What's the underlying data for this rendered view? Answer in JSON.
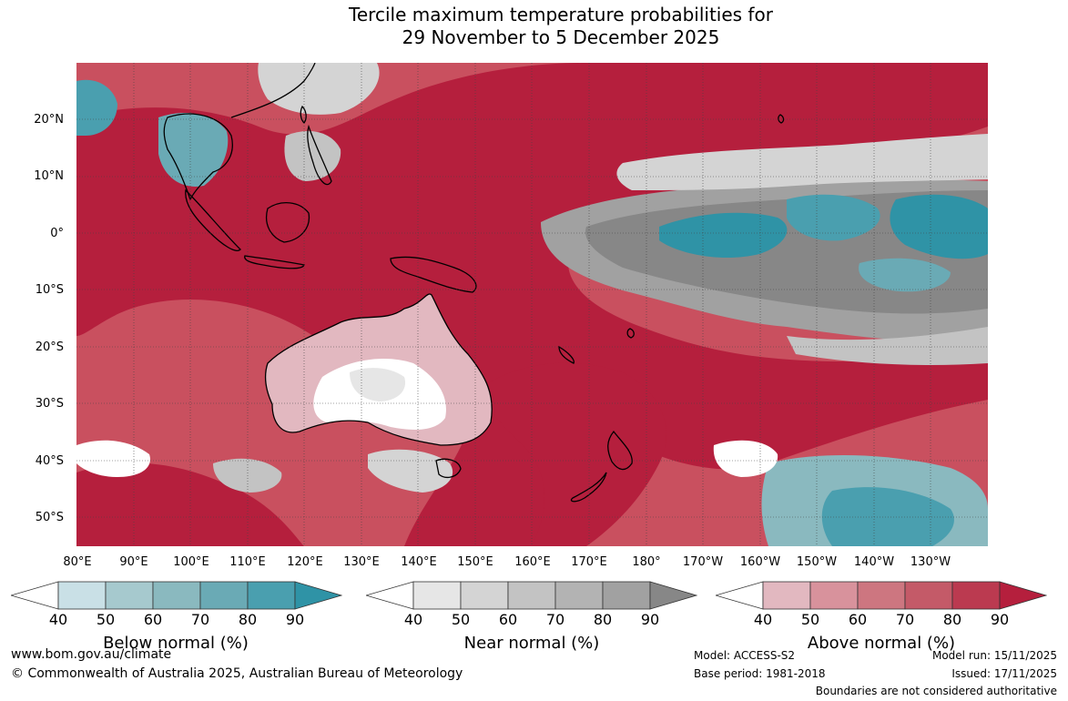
{
  "title_line1": "Tercile maximum temperature probabilities for",
  "title_line2": "29 November to 5 December 2025",
  "lat_ticks": [
    "20°N",
    "10°N",
    "0°",
    "10°S",
    "20°S",
    "30°S",
    "40°S",
    "50°S"
  ],
  "lon_ticks": [
    "80°E",
    "90°E",
    "100°E",
    "110°E",
    "120°E",
    "130°E",
    "140°E",
    "150°E",
    "160°E",
    "170°E",
    "180°",
    "170°W",
    "160°W",
    "150°W",
    "140°W",
    "130°W"
  ],
  "legends": [
    {
      "title": "Below normal (%)",
      "labels": [
        "40",
        "50",
        "60",
        "70",
        "80",
        "90"
      ],
      "colors": [
        "#ffffff",
        "#c9e0e6",
        "#a6c9ce",
        "#8ab9bf",
        "#6aaab5",
        "#4a9faf",
        "#2f93a6"
      ]
    },
    {
      "title": "Near normal (%)",
      "labels": [
        "40",
        "50",
        "60",
        "70",
        "80",
        "90"
      ],
      "colors": [
        "#ffffff",
        "#e6e6e6",
        "#d4d4d4",
        "#c3c3c3",
        "#b3b3b3",
        "#a1a1a1",
        "#878787"
      ]
    },
    {
      "title": "Above normal (%)",
      "labels": [
        "40",
        "50",
        "60",
        "70",
        "80",
        "90"
      ],
      "colors": [
        "#ffffff",
        "#e2b8c0",
        "#d8929c",
        "#cd7680",
        "#c45a68",
        "#bb3a50",
        "#b51f3d"
      ]
    }
  ],
  "footer": {
    "url": "www.bom.gov.au/climate",
    "copyright": "© Commonwealth of Australia 2025, Australian Bureau of Meteorology",
    "model": "Model: ACCESS-S2",
    "base_period": "Base period: 1981-2018",
    "model_run": "Model run: 15/11/2025",
    "issued": "Issued: 17/11/2025",
    "disclaimer": "Boundaries are not considered authoritative"
  }
}
